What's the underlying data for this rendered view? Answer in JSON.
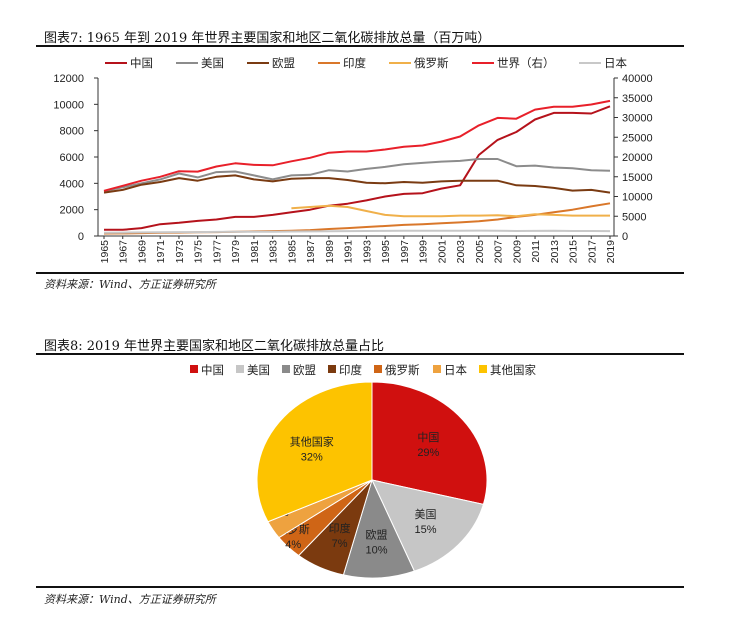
{
  "figure7": {
    "title": "图表7:   1965 年到 2019 年世界主要国家和地区二氧化碳排放总量（百万吨）",
    "source": "资料来源：Wind、方正证券研究所",
    "chart_data": {
      "type": "line",
      "x": [
        1965,
        1967,
        1969,
        1971,
        1973,
        1975,
        1977,
        1979,
        1981,
        1983,
        1985,
        1987,
        1989,
        1991,
        1993,
        1995,
        1997,
        1999,
        2001,
        2003,
        2005,
        2007,
        2009,
        2011,
        2013,
        2015,
        2017,
        2019
      ],
      "x_tick_labels": [
        "1965",
        "1967",
        "1969",
        "1971",
        "1973",
        "1975",
        "1977",
        "1979",
        "1981",
        "1983",
        "1985",
        "1987",
        "1989",
        "1991",
        "1993",
        "1995",
        "1997",
        "1999",
        "2001",
        "2003",
        "2005",
        "2007",
        "2009",
        "2011",
        "2013",
        "2015",
        "2017",
        "2019"
      ],
      "ylim": [
        0,
        12000
      ],
      "y_ticks": [
        "0",
        "2000",
        "4000",
        "6000",
        "8000",
        "10000",
        "12000"
      ],
      "y2lim": [
        0,
        40000
      ],
      "y2_ticks": [
        "0",
        "5000",
        "10000",
        "15000",
        "20000",
        "25000",
        "30000",
        "35000",
        "40000"
      ],
      "grid": false,
      "legend_position": "top",
      "series": [
        {
          "name": "中国",
          "axis": "left",
          "color": "#b5121b",
          "values": [
            480,
            470,
            600,
            900,
            1000,
            1150,
            1250,
            1450,
            1450,
            1600,
            1800,
            2000,
            2300,
            2450,
            2700,
            3000,
            3200,
            3250,
            3600,
            3850,
            6150,
            7300,
            7900,
            8850,
            9350,
            9350,
            9300,
            9850
          ]
        },
        {
          "name": "美国",
          "axis": "left",
          "color": "#8c8c8c",
          "values": [
            3400,
            3700,
            4000,
            4300,
            4750,
            4450,
            4850,
            4900,
            4600,
            4300,
            4600,
            4650,
            5000,
            4900,
            5100,
            5250,
            5450,
            5550,
            5650,
            5700,
            5850,
            5850,
            5300,
            5350,
            5200,
            5150,
            5000,
            4950
          ]
        },
        {
          "name": "欧盟",
          "axis": "left",
          "color": "#7a3b12",
          "values": [
            3300,
            3500,
            3900,
            4100,
            4400,
            4200,
            4500,
            4600,
            4300,
            4150,
            4350,
            4400,
            4400,
            4250,
            4050,
            4000,
            4100,
            4050,
            4150,
            4200,
            4200,
            4200,
            3850,
            3800,
            3650,
            3450,
            3500,
            3300
          ]
        },
        {
          "name": "印度",
          "axis": "left",
          "color": "#d9772a",
          "values": [
            190,
            200,
            220,
            240,
            260,
            280,
            300,
            320,
            350,
            370,
            400,
            450,
            530,
            600,
            680,
            760,
            840,
            900,
            970,
            1030,
            1120,
            1250,
            1450,
            1600,
            1800,
            2000,
            2250,
            2480
          ]
        },
        {
          "name": "俄罗斯",
          "axis": "left",
          "color": "#f0b04a",
          "values": [
            null,
            null,
            null,
            null,
            null,
            null,
            null,
            null,
            null,
            null,
            2100,
            2200,
            2300,
            2200,
            1900,
            1600,
            1500,
            1500,
            1500,
            1550,
            1550,
            1580,
            1500,
            1650,
            1600,
            1550,
            1550,
            1550
          ]
        },
        {
          "name": "世界（右）",
          "axis": "right",
          "color": "#e8202a",
          "values": [
            11450,
            12700,
            14000,
            15000,
            16400,
            16300,
            17600,
            18400,
            18000,
            17900,
            18900,
            19800,
            21100,
            21400,
            21400,
            21900,
            22600,
            22900,
            23900,
            25200,
            28000,
            29900,
            29700,
            32000,
            32700,
            32700,
            33300,
            34200
          ]
        },
        {
          "name": "日本",
          "axis": "left",
          "color": "#c8c8c8",
          "values": [
            250,
            260,
            270,
            280,
            300,
            300,
            310,
            320,
            330,
            330,
            340,
            350,
            360,
            370,
            380,
            390,
            400,
            400,
            400,
            400,
            410,
            400,
            380,
            390,
            400,
            380,
            380,
            370
          ]
        }
      ]
    }
  },
  "figure8": {
    "title": "图表8:   2019 年世界主要国家和地区二氧化碳排放总量占比",
    "source": "资料来源：Wind、方正证券研究所",
    "chart_data": {
      "type": "pie",
      "legend_position": "top",
      "slices": [
        {
          "name": "中国",
          "value": 29,
          "label": "29%",
          "color": "#d0100f"
        },
        {
          "name": "美国",
          "value": 15,
          "label": "15%",
          "color": "#c6c6c6"
        },
        {
          "name": "欧盟",
          "value": 10,
          "label": "10%",
          "color": "#8a8a8a"
        },
        {
          "name": "印度",
          "value": 7,
          "label": "7%",
          "color": "#7b3a0f"
        },
        {
          "name": "俄罗斯",
          "value": 4,
          "label": "4%",
          "color": "#cf6516"
        },
        {
          "name": "日本",
          "value": 3,
          "label": "3%",
          "color": "#eea23f"
        },
        {
          "name": "其他国家",
          "value": 32,
          "label": "32%",
          "color": "#fdc300"
        }
      ]
    }
  }
}
